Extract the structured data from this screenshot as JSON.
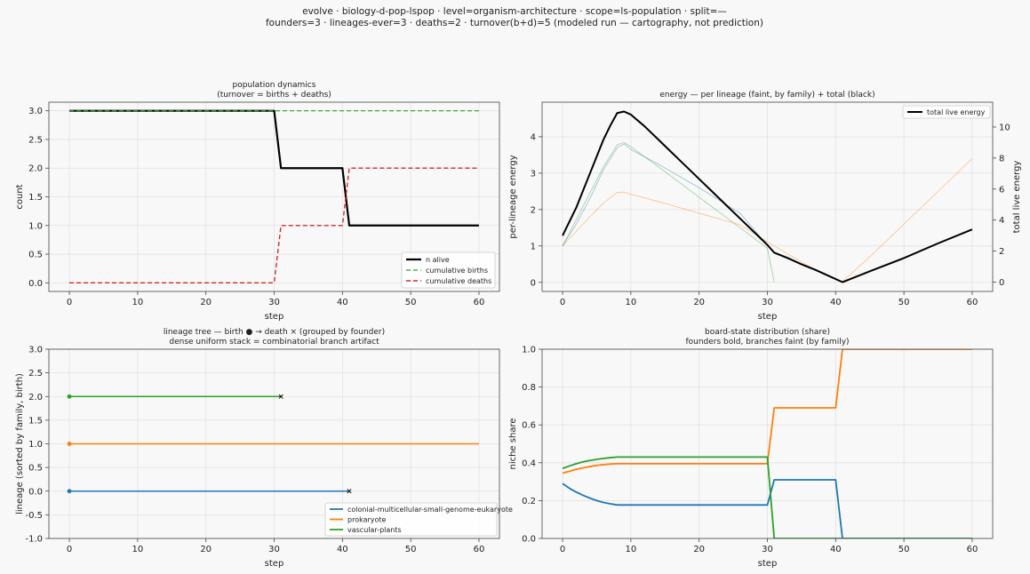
{
  "figure": {
    "title_line1": "evolve · biology-d-pop-lspop · level=organism-architecture · scope=ls-population · split=—",
    "title_line2": "founders=3 · lineages-ever=3 · deaths=2 · turnover(b+d)=5   (modeled run — cartography, not prediction)"
  },
  "colors": {
    "background": "#f8f8f8",
    "blue": "#1f77b4",
    "orange": "#ff7f0e",
    "green": "#2ca02c",
    "red": "#d62728",
    "black": "#000000"
  },
  "chart_data": [
    {
      "id": "population",
      "type": "line",
      "title_line1": "population dynamics",
      "title_line2": "(turnover = births + deaths)",
      "xlabel": "step",
      "ylabel": "count",
      "xlim": [
        -3,
        63
      ],
      "ylim": [
        -0.15,
        3.15
      ],
      "xticks": [
        0,
        10,
        20,
        30,
        40,
        50,
        60
      ],
      "yticks": [
        0.0,
        0.5,
        1.0,
        1.5,
        2.0,
        2.5,
        3.0
      ],
      "grid": true,
      "legend_position": "lower-right",
      "series": [
        {
          "name": "n alive",
          "color": "#000000",
          "style": "solid",
          "width": 2.2,
          "x": [
            0,
            30,
            31,
            40,
            41,
            60
          ],
          "y": [
            3,
            3,
            2,
            2,
            1,
            1
          ]
        },
        {
          "name": "cumulative births",
          "color": "#2ca02c",
          "style": "dashed",
          "width": 1.2,
          "x": [
            0,
            60
          ],
          "y": [
            3,
            3
          ]
        },
        {
          "name": "cumulative deaths",
          "color": "#d62728",
          "style": "dashed",
          "width": 1.4,
          "x": [
            0,
            30,
            31,
            40,
            41,
            60
          ],
          "y": [
            0,
            0,
            1,
            1,
            2,
            2
          ]
        }
      ]
    },
    {
      "id": "energy",
      "type": "line",
      "title_line1": "energy — per lineage (faint, by family) + total (black)",
      "xlabel": "step",
      "ylabel": "per-lineage energy",
      "ylabel_right": "total live energy",
      "xlim": [
        -3,
        63
      ],
      "ylim": [
        -0.25,
        4.95
      ],
      "ylim_right": [
        -0.6,
        11.6
      ],
      "xticks": [
        0,
        10,
        20,
        30,
        40,
        50,
        60
      ],
      "yticks": [
        0,
        1,
        2,
        3,
        4
      ],
      "yticks_right": [
        0,
        2,
        4,
        6,
        8,
        10
      ],
      "grid": true,
      "legend_position": "top-right",
      "series": [
        {
          "name": "",
          "axis": "left",
          "color": "#2ca02c",
          "style": "solid",
          "width": 0.8,
          "opacity": 0.45,
          "x": [
            0,
            2,
            4,
            6,
            8,
            9,
            10,
            12,
            14,
            16,
            18,
            20,
            22,
            24,
            26,
            28,
            30,
            31
          ],
          "y": [
            1.0,
            1.72,
            2.45,
            3.18,
            3.78,
            3.84,
            3.73,
            3.45,
            3.18,
            2.9,
            2.62,
            2.34,
            2.06,
            1.78,
            1.5,
            1.22,
            0.94,
            0.0
          ]
        },
        {
          "name": "",
          "axis": "left",
          "color": "#ff7f0e",
          "style": "solid",
          "width": 0.8,
          "opacity": 0.45,
          "x": [
            0,
            2,
            4,
            6,
            8,
            9,
            10,
            14,
            20,
            26,
            31,
            35,
            38,
            41,
            45,
            50,
            55,
            60
          ],
          "y": [
            1.0,
            1.4,
            1.8,
            2.18,
            2.47,
            2.48,
            2.42,
            2.22,
            1.9,
            1.58,
            1.0,
            0.56,
            0.24,
            0.02,
            0.7,
            1.6,
            2.5,
            3.4
          ]
        },
        {
          "name": "",
          "axis": "left",
          "color": "#1f77b4",
          "style": "solid",
          "width": 0.8,
          "opacity": 0.45,
          "x": [
            0,
            2,
            4,
            6,
            8,
            9,
            10,
            14,
            20,
            26,
            31,
            36,
            40,
            41
          ],
          "y": [
            1.0,
            1.6,
            2.3,
            3.1,
            3.7,
            3.8,
            3.65,
            3.25,
            2.6,
            1.9,
            0.8,
            0.4,
            0.1,
            0.0
          ]
        },
        {
          "name": "total live energy",
          "axis": "right",
          "color": "#000000",
          "style": "solid",
          "width": 2.0,
          "x": [
            0,
            1,
            2,
            3,
            4,
            5,
            6,
            7,
            8,
            9,
            10,
            12,
            14,
            16,
            18,
            20,
            22,
            24,
            26,
            28,
            30,
            31,
            33,
            35,
            37,
            39,
            41,
            45,
            50,
            55,
            60
          ],
          "y": [
            3.0,
            3.9,
            4.8,
            5.9,
            7.0,
            8.1,
            9.2,
            10.1,
            10.9,
            11.0,
            10.8,
            10.05,
            9.2,
            8.35,
            7.5,
            6.65,
            5.8,
            4.95,
            4.1,
            3.25,
            2.4,
            1.9,
            1.55,
            1.15,
            0.8,
            0.4,
            0.0,
            0.7,
            1.55,
            2.5,
            3.4
          ]
        }
      ]
    },
    {
      "id": "lineage_tree",
      "type": "line",
      "title_line1": "lineage tree — birth ● → death ×  (grouped by founder)",
      "title_line2": "dense uniform stack = combinatorial branch artifact",
      "xlabel": "step",
      "ylabel": "lineage (sorted by family, birth)",
      "xlim": [
        -3,
        63
      ],
      "ylim": [
        -1.0,
        3.0
      ],
      "xticks": [
        0,
        10,
        20,
        30,
        40,
        50,
        60
      ],
      "yticks": [
        -1.0,
        -0.5,
        0.0,
        0.5,
        1.0,
        1.5,
        2.0,
        2.5,
        3.0
      ],
      "grid": true,
      "legend_position": "lower-right",
      "series": [
        {
          "name": "colonial-multicellular-small-genome-eukaryote",
          "color": "#1f77b4",
          "birth": 0,
          "death": 41,
          "y": 0
        },
        {
          "name": "prokaryote",
          "color": "#ff7f0e",
          "birth": 0,
          "death": null,
          "end": 60,
          "y": 1
        },
        {
          "name": "vascular-plants",
          "color": "#2ca02c",
          "birth": 0,
          "death": 31,
          "y": 2
        }
      ]
    },
    {
      "id": "board_share",
      "type": "line",
      "title_line1": "board-state distribution (share)",
      "title_line2": "founders bold, branches faint (by family)",
      "xlabel": "step",
      "ylabel": "niche share",
      "xlim": [
        -3,
        63
      ],
      "ylim": [
        0.0,
        1.0
      ],
      "xticks": [
        0,
        10,
        20,
        30,
        40,
        50,
        60
      ],
      "yticks": [
        0.0,
        0.2,
        0.4,
        0.6,
        0.8,
        1.0
      ],
      "grid": true,
      "legend_position": "none",
      "series": [
        {
          "name": "",
          "color": "#1f77b4",
          "style": "solid",
          "width": 1.8,
          "x": [
            0,
            1,
            2,
            3,
            4,
            5,
            6,
            7,
            8,
            30,
            31,
            40,
            41,
            60
          ],
          "y": [
            0.29,
            0.265,
            0.245,
            0.228,
            0.213,
            0.2,
            0.19,
            0.183,
            0.177,
            0.177,
            0.31,
            0.31,
            0.0,
            0.0
          ]
        },
        {
          "name": "",
          "color": "#ff7f0e",
          "style": "solid",
          "width": 1.8,
          "x": [
            0,
            1,
            2,
            3,
            4,
            5,
            6,
            7,
            8,
            30,
            31,
            40,
            41,
            60
          ],
          "y": [
            0.345,
            0.355,
            0.365,
            0.373,
            0.38,
            0.386,
            0.39,
            0.393,
            0.395,
            0.395,
            0.69,
            0.69,
            1.0,
            1.0
          ]
        },
        {
          "name": "",
          "color": "#2ca02c",
          "style": "solid",
          "width": 1.8,
          "x": [
            0,
            1,
            2,
            3,
            4,
            5,
            6,
            7,
            8,
            30,
            31,
            60
          ],
          "y": [
            0.37,
            0.383,
            0.395,
            0.405,
            0.412,
            0.418,
            0.423,
            0.427,
            0.43,
            0.43,
            0.0,
            0.0
          ]
        }
      ]
    }
  ]
}
